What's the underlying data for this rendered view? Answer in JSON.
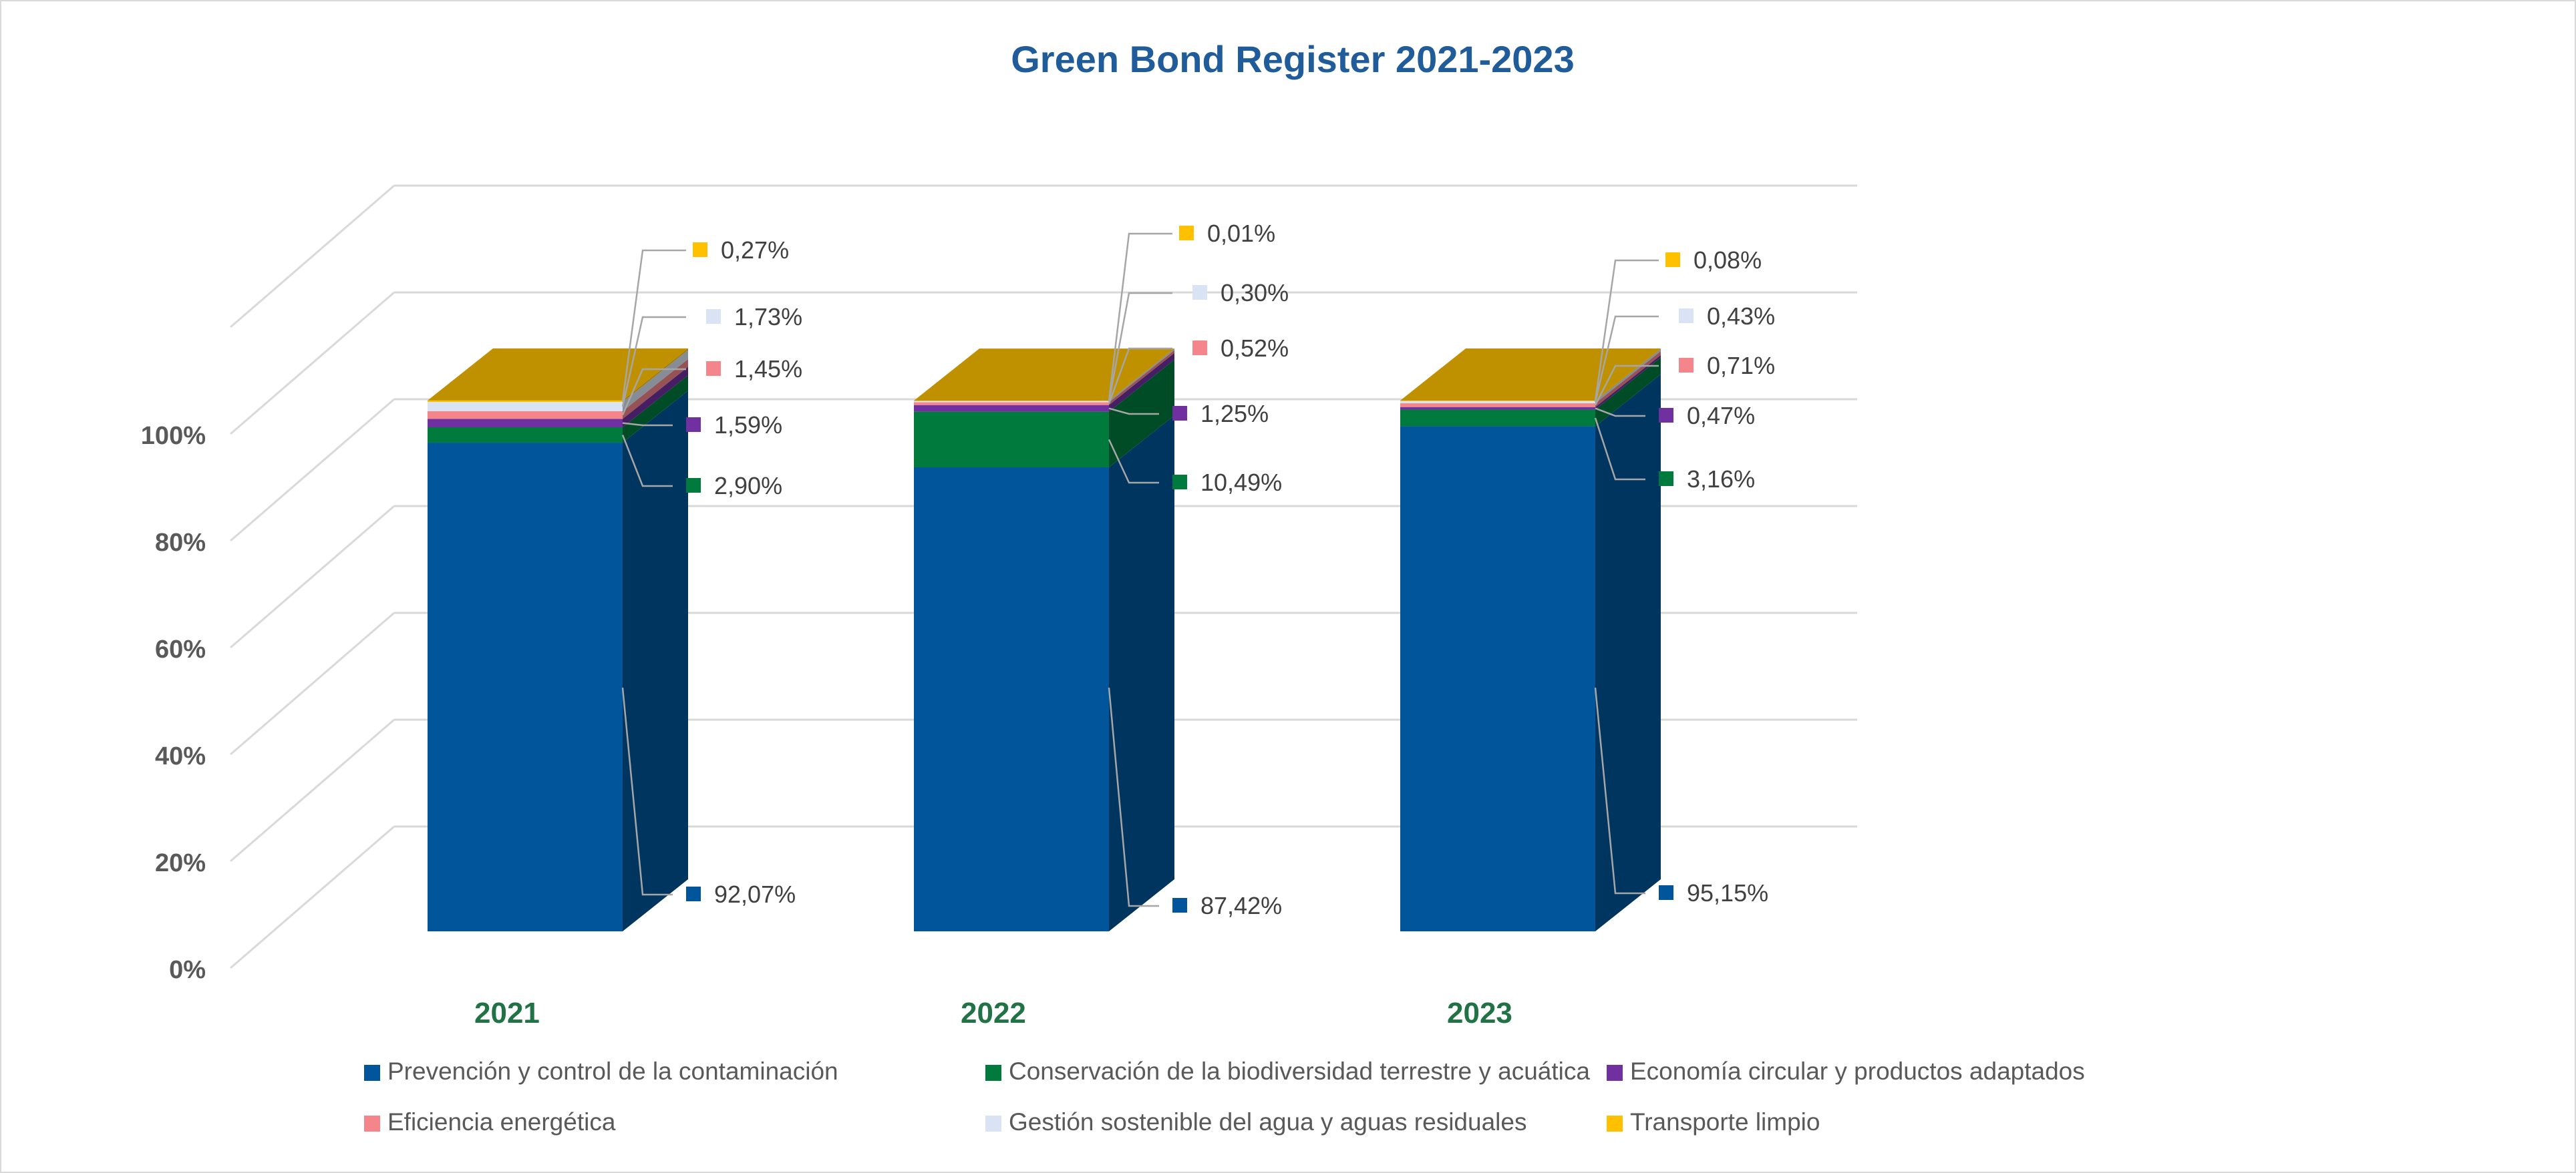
{
  "chart_data": {
    "type": "bar",
    "stacked": true,
    "three_d": true,
    "title": "Green Bond Register  2021-2023",
    "xlabel": "",
    "ylabel": "",
    "categories": [
      "2021",
      "2022",
      "2023"
    ],
    "ylim": [
      0,
      100
    ],
    "yticks": [
      "0%",
      "20%",
      "40%",
      "60%",
      "80%",
      "100%"
    ],
    "grid": true,
    "legend_position": "bottom",
    "series": [
      {
        "name": "Prevención y control de la contaminación",
        "color": "#00559b",
        "values": [
          92.07,
          87.42,
          95.15
        ],
        "labels": [
          "92,07%",
          "87,42%",
          "95,15%"
        ]
      },
      {
        "name": "Conservación de la biodiversidad terrestre y acuática",
        "color": "#007a3d",
        "values": [
          2.9,
          10.49,
          3.16
        ],
        "labels": [
          "2,90%",
          "10,49%",
          "3,16%"
        ]
      },
      {
        "name": "Economía circular y productos adaptados",
        "color": "#7030a0",
        "values": [
          1.59,
          1.25,
          0.47
        ],
        "labels": [
          "1,59%",
          "1,25%",
          "0,47%"
        ]
      },
      {
        "name": "Eficiencia energética",
        "color": "#f4858b",
        "values": [
          1.45,
          0.52,
          0.71
        ],
        "labels": [
          "1,45%",
          "0,52%",
          "0,71%"
        ]
      },
      {
        "name": "Gestión sostenible del agua y aguas residuales",
        "color": "#dae3f3",
        "values": [
          1.73,
          0.3,
          0.43
        ],
        "labels": [
          "1,73%",
          "0,30%",
          "0,43%"
        ]
      },
      {
        "name": "Transporte limpio",
        "color": "#ffc000",
        "values": [
          0.27,
          0.01,
          0.08
        ],
        "labels": [
          "0,27%",
          "0,01%",
          "0,08%"
        ]
      }
    ],
    "top_face_color": "#bf9000",
    "category_color": "#217346",
    "title_color": "#1f5c99"
  }
}
